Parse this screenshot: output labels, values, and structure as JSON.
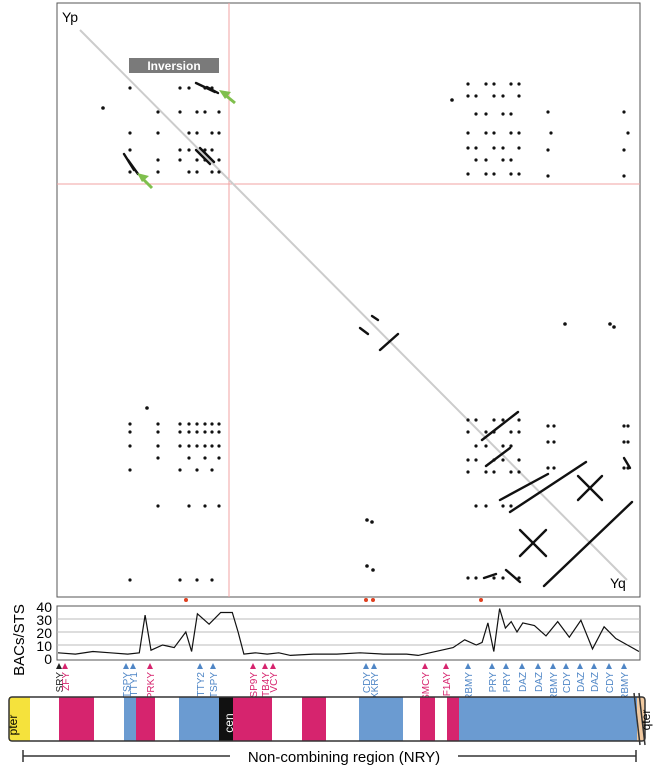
{
  "dotplot": {
    "corner_top_left": "Yp",
    "corner_bottom_right": "Yq",
    "inversion_label": "Inversion"
  },
  "density_plot": {
    "ylabel": "BACs/STS",
    "yticks": [
      "0",
      "10",
      "20",
      "30",
      "40"
    ],
    "ylim": [
      0,
      40
    ]
  },
  "chart_data": {
    "type": "line",
    "ylabel": "BACs/STS",
    "ylim": [
      0,
      40
    ],
    "description_of_values": "relative position along Y chromosome (0-1) vs BACs/STS count",
    "x": [
      0.0,
      0.03,
      0.06,
      0.09,
      0.12,
      0.14,
      0.15,
      0.16,
      0.18,
      0.2,
      0.22,
      0.23,
      0.24,
      0.26,
      0.28,
      0.29,
      0.3,
      0.31,
      0.32,
      0.34,
      0.36,
      0.38,
      0.4,
      0.44,
      0.48,
      0.52,
      0.56,
      0.6,
      0.62,
      0.64,
      0.66,
      0.68,
      0.7,
      0.72,
      0.73,
      0.74,
      0.75,
      0.76,
      0.77,
      0.78,
      0.79,
      0.8,
      0.82,
      0.84,
      0.86,
      0.88,
      0.9,
      0.92,
      0.94,
      0.96,
      0.98,
      1.0
    ],
    "y": [
      4,
      3,
      5,
      4,
      3,
      4,
      33,
      6,
      10,
      8,
      20,
      5,
      34,
      26,
      35,
      35,
      35,
      20,
      3,
      4,
      3,
      4,
      2,
      3,
      3,
      4,
      3,
      3,
      2,
      4,
      6,
      8,
      14,
      10,
      12,
      27,
      5,
      38,
      23,
      28,
      20,
      27,
      25,
      17,
      28,
      16,
      29,
      7,
      24,
      15,
      10,
      5
    ]
  },
  "gene_markers": [
    {
      "name": "SRY",
      "color": "#222222"
    },
    {
      "name": "ZFY",
      "color": "#d6246e"
    },
    {
      "name": "TSPY",
      "color": "#4f86c6"
    },
    {
      "name": "TTY1",
      "color": "#4f86c6"
    },
    {
      "name": "PRKY",
      "color": "#d6246e"
    },
    {
      "name": "TTY2",
      "color": "#4f86c6"
    },
    {
      "name": "TSPY",
      "color": "#4f86c6"
    },
    {
      "name": "USP9Y",
      "color": "#d6246e"
    },
    {
      "name": "TB4Y",
      "color": "#d6246e"
    },
    {
      "name": "VCY",
      "color": "#d6246e"
    },
    {
      "name": "CDY",
      "color": "#4f86c6"
    },
    {
      "name": "XKRY",
      "color": "#4f86c6"
    },
    {
      "name": "SMCY",
      "color": "#d6246e"
    },
    {
      "name": "EIF1AY",
      "color": "#d6246e"
    },
    {
      "name": "RBMY",
      "color": "#4f86c6"
    },
    {
      "name": "PRY",
      "color": "#4f86c6"
    },
    {
      "name": "PRY",
      "color": "#4f86c6"
    },
    {
      "name": "DAZ",
      "color": "#4f86c6"
    },
    {
      "name": "DAZ",
      "color": "#4f86c6"
    },
    {
      "name": "RBMY",
      "color": "#4f86c6"
    },
    {
      "name": "CDY",
      "color": "#4f86c6"
    },
    {
      "name": "DAZ",
      "color": "#4f86c6"
    },
    {
      "name": "DAZ",
      "color": "#4f86c6"
    },
    {
      "name": "CDY",
      "color": "#4f86c6"
    },
    {
      "name": "RBMY",
      "color": "#4f86c6"
    }
  ],
  "chromosome": {
    "pter_label": "pter",
    "cen_label": "cen",
    "qter_label": "qter",
    "region_label": "Non-combining region (NRY)",
    "colors": {
      "pter": "#f5e23c",
      "magenta": "#d6246e",
      "blue": "#6b9bd1",
      "white": "#ffffff",
      "cen": "#111111",
      "qter": "#f0c9a0"
    }
  }
}
